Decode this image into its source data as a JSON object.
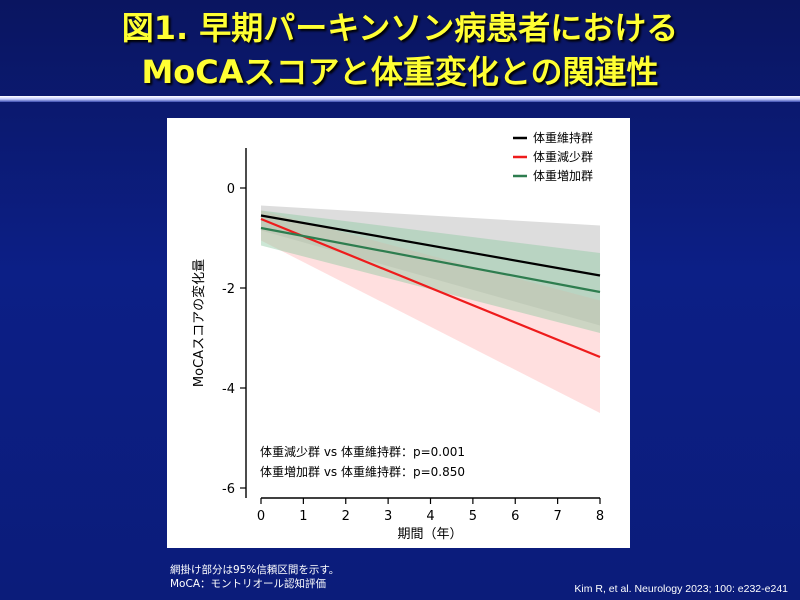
{
  "slide": {
    "title_line1": "図1. 早期パーキンソン病患者における",
    "title_line2": "MoCAスコアと体重変化との関連性"
  },
  "footnotes": {
    "note1": "網掛け部分は95%信頼区間を示す。",
    "note2": "MoCA：モントリオール認知評価",
    "citation": "Kim R, et al. Neurology 2023; 100: e232-e241"
  },
  "chart_data": {
    "type": "line",
    "xlabel": "期間（年）",
    "ylabel": "MoCAスコアの変化量",
    "xlim": [
      0,
      8
    ],
    "ylim": [
      -6.2,
      0.8
    ],
    "xticks": [
      0,
      1,
      2,
      3,
      4,
      5,
      6,
      7,
      8
    ],
    "yticks": [
      0,
      -2,
      -4,
      -6
    ],
    "legend_position": "top-right",
    "series": [
      {
        "name": "体重維持群",
        "color": "#000000",
        "fill": "#b4b4b4",
        "x": [
          0,
          8
        ],
        "y": [
          -0.55,
          -1.75
        ],
        "ci_lower": [
          -0.85,
          -2.75
        ],
        "ci_upper": [
          -0.35,
          -0.75
        ]
      },
      {
        "name": "体重減少群",
        "color": "#ee1c1c",
        "fill": "#ffb8b8",
        "x": [
          0,
          8
        ],
        "y": [
          -0.62,
          -3.38
        ],
        "ci_lower": [
          -1.05,
          -4.5
        ],
        "ci_upper": [
          -0.45,
          -2.25
        ]
      },
      {
        "name": "体重増加群",
        "color": "#2e7d4f",
        "fill": "#8fc9a2",
        "x": [
          0,
          8
        ],
        "y": [
          -0.8,
          -2.08
        ],
        "ci_lower": [
          -1.15,
          -2.9
        ],
        "ci_upper": [
          -0.45,
          -1.3
        ]
      }
    ],
    "annotations": [
      "体重減少群 vs 体重維持群：p=0.001",
      "体重増加群 vs 体重維持群：p=0.850"
    ]
  }
}
